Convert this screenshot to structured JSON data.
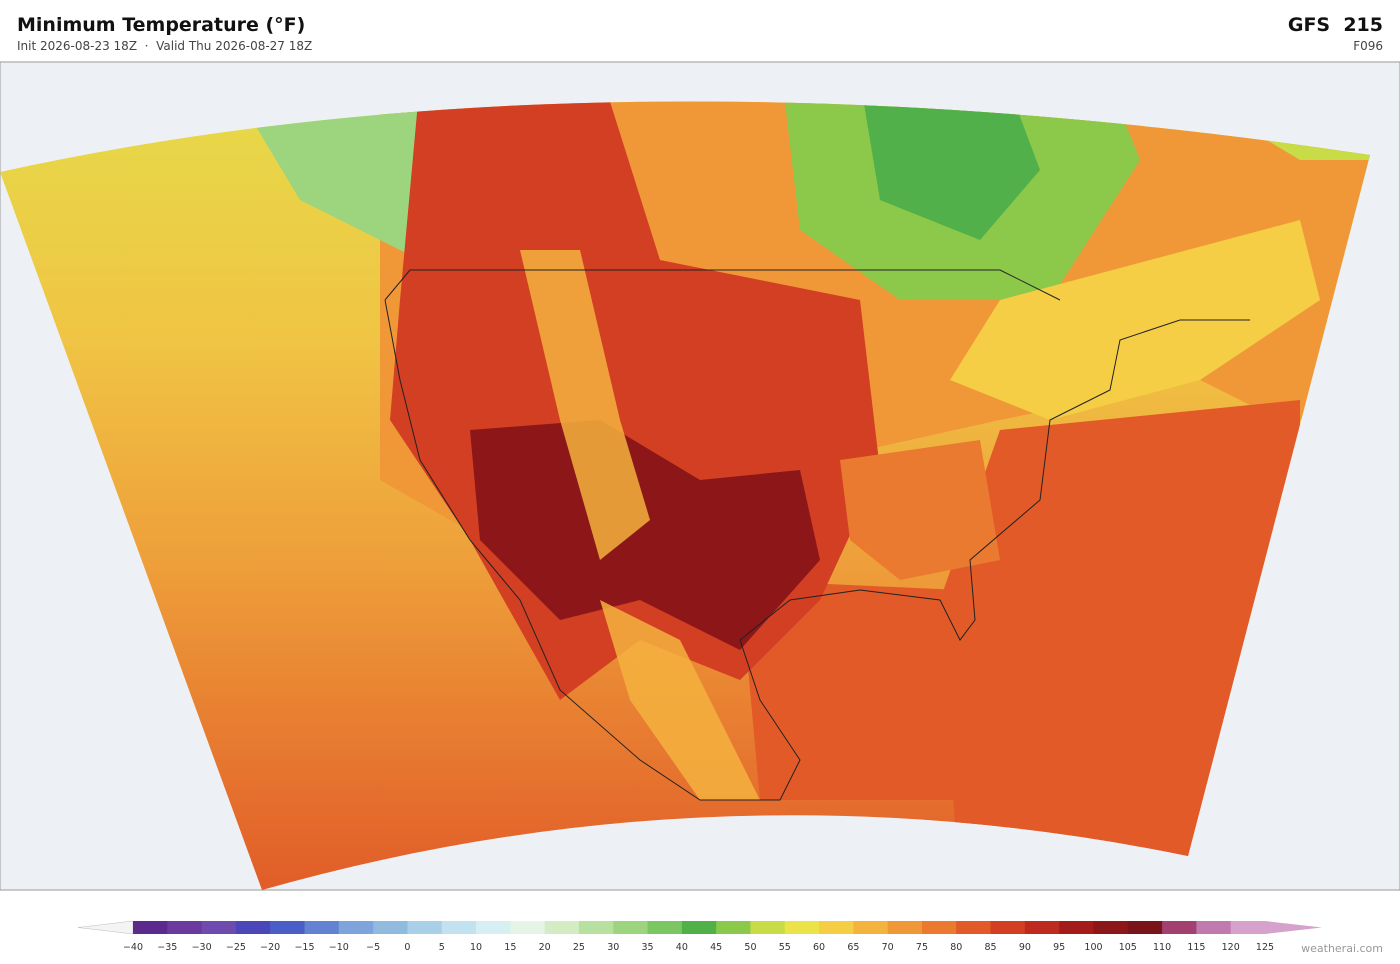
{
  "header": {
    "title": "Minimum Temperature  (°F)",
    "subtitle": "Init 2026-08-23 18Z  ·  Valid Thu 2026-08-27 18Z",
    "model": "GFS  215",
    "forecast_hour": "F096"
  },
  "colorbar": {
    "labels": [
      "−40",
      "−35",
      "−30",
      "−25",
      "−20",
      "−15",
      "−10",
      "−5",
      "0",
      "5",
      "10",
      "15",
      "20",
      "25",
      "30",
      "35",
      "40",
      "45",
      "50",
      "55",
      "60",
      "65",
      "70",
      "75",
      "80",
      "85",
      "90",
      "95",
      "100",
      "105",
      "110",
      "115",
      "120",
      "125"
    ],
    "colors": [
      "#5b2a8c",
      "#6a3a9e",
      "#6f4bb0",
      "#4a47b8",
      "#4b5ec8",
      "#6382d2",
      "#7ea4dc",
      "#91badf",
      "#a9d0e8",
      "#c2e2ef",
      "#d7eef2",
      "#e6f4e6",
      "#d3ecc4",
      "#b8e09e",
      "#9cd57e",
      "#7bc764",
      "#52b04a",
      "#8cc84a",
      "#c8dc48",
      "#ebe348",
      "#f5ce46",
      "#f4b23e",
      "#f09838",
      "#ea7a30",
      "#e15a28",
      "#d23f22",
      "#bd2b1e",
      "#a41c1a",
      "#8c1618",
      "#7a1418",
      "#a24070",
      "#c07aae",
      "#d6a2cc"
    ],
    "under_color": "#f4f4f4",
    "over_color": "#d6a2cc"
  },
  "watermark": "weatherai.com"
}
